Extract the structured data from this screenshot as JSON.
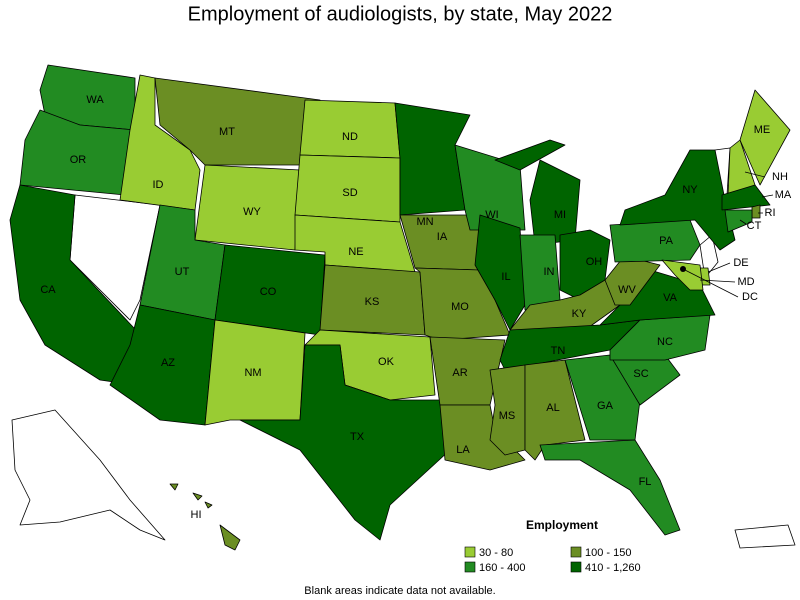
{
  "title": "Employment of audiologists, by state, May 2022",
  "legend": {
    "title": "Employment",
    "items": [
      {
        "label": "30 - 80",
        "color": "#99cc33"
      },
      {
        "label": "160 - 400",
        "color": "#228b22"
      },
      {
        "label": "100 - 150",
        "color": "#6b8e23"
      },
      {
        "label": "410 - 1,260",
        "color": "#006400"
      }
    ]
  },
  "states": [
    {
      "label": "WA",
      "employment": "160 - 400"
    },
    {
      "label": "OR",
      "employment": "160 - 400"
    },
    {
      "label": "CA",
      "employment": "410 - 1,260"
    },
    {
      "label": "ID",
      "employment": "30 - 80"
    },
    {
      "label": "MT",
      "employment": "100 - 150"
    },
    {
      "label": "WY",
      "employment": "30 - 80"
    },
    {
      "label": "UT",
      "employment": "160 - 400"
    },
    {
      "label": "CO",
      "employment": "410 - 1,260"
    },
    {
      "label": "AZ",
      "employment": "410 - 1,260"
    },
    {
      "label": "NM",
      "employment": "30 - 80"
    },
    {
      "label": "ND",
      "employment": "30 - 80"
    },
    {
      "label": "SD",
      "employment": "30 - 80"
    },
    {
      "label": "NE",
      "employment": "30 - 80"
    },
    {
      "label": "KS",
      "employment": "100 - 150"
    },
    {
      "label": "OK",
      "employment": "30 - 80"
    },
    {
      "label": "TX",
      "employment": "410 - 1,260"
    },
    {
      "label": "MN",
      "employment": "410 - 1,260"
    },
    {
      "label": "IA",
      "employment": "100 - 150"
    },
    {
      "label": "MO",
      "employment": "100 - 150"
    },
    {
      "label": "AR",
      "employment": "100 - 150"
    },
    {
      "label": "LA",
      "employment": "100 - 150"
    },
    {
      "label": "WI",
      "employment": "160 - 400"
    },
    {
      "label": "IL",
      "employment": "410 - 1,260"
    },
    {
      "label": "MI",
      "employment": "410 - 1,260"
    },
    {
      "label": "IN",
      "employment": "160 - 400"
    },
    {
      "label": "OH",
      "employment": "410 - 1,260"
    },
    {
      "label": "KY",
      "employment": "100 - 150"
    },
    {
      "label": "TN",
      "employment": "410 - 1,260"
    },
    {
      "label": "MS",
      "employment": "100 - 150"
    },
    {
      "label": "AL",
      "employment": "100 - 150"
    },
    {
      "label": "GA",
      "employment": "160 - 400"
    },
    {
      "label": "FL",
      "employment": "160 - 400"
    },
    {
      "label": "SC",
      "employment": "160 - 400"
    },
    {
      "label": "NC",
      "employment": "160 - 400"
    },
    {
      "label": "VA",
      "employment": "410 - 1,260"
    },
    {
      "label": "WV",
      "employment": "100 - 150"
    },
    {
      "label": "PA",
      "employment": "160 - 400"
    },
    {
      "label": "NY",
      "employment": "410 - 1,260"
    },
    {
      "label": "NH",
      "employment": "30 - 80"
    },
    {
      "label": "ME",
      "employment": "30 - 80"
    },
    {
      "label": "MA",
      "employment": "410 - 1,260"
    },
    {
      "label": "RI",
      "employment": "100 - 150"
    },
    {
      "label": "CT",
      "employment": "160 - 400"
    },
    {
      "label": "DE",
      "employment": "30 - 80"
    },
    {
      "label": "MD",
      "employment": "30 - 80"
    },
    {
      "label": "HI",
      "employment": "100 - 150"
    },
    {
      "label": "DC"
    }
  ],
  "footnote": "Blank areas indicate data not available."
}
